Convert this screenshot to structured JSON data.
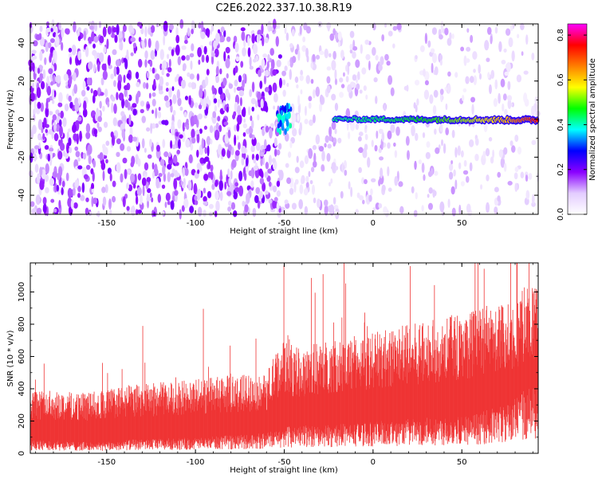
{
  "chart_data": [
    {
      "type": "heatmap",
      "title": "C2E6.2022.337.10.38.R19",
      "xlabel": "Height of straight line (km)",
      "ylabel": "Frequency (Hz)",
      "xlim": [
        -193,
        93
      ],
      "ylim": [
        -50,
        50
      ],
      "xticks": [
        -150,
        -100,
        -50,
        0,
        50
      ],
      "yticks": [
        -40,
        -20,
        0,
        20,
        40
      ],
      "colorbar": {
        "label": "Normalized spectral amplitude",
        "range": [
          0.0,
          0.85
        ],
        "ticks": [
          0.0,
          0.2,
          0.4,
          0.6,
          0.8
        ],
        "colors": [
          "#ffffff",
          "#e3ccff",
          "#8a00ff",
          "#0000ff",
          "#00ffff",
          "#00ff00",
          "#ffff00",
          "#ff7f00",
          "#ff0000",
          "#ff00ff"
        ]
      },
      "features": {
        "noise_level": 0.12,
        "signal_start_km": -52,
        "signal_end_km": 93,
        "signal_center_hz": 0,
        "signal_peak_amplitude": 0.8,
        "burst_at_km": -50
      }
    },
    {
      "type": "area",
      "xlabel": "Height of straight line (km)",
      "ylabel": "SNR (10 * v/v)",
      "xlim": [
        -193,
        93
      ],
      "ylim": [
        0,
        1180
      ],
      "xticks": [
        -150,
        -100,
        -50,
        0,
        50
      ],
      "yticks": [
        0,
        200,
        400,
        600,
        800,
        1000
      ],
      "color": "#ef3434",
      "envelope": {
        "x": [
          -193,
          -160,
          -150,
          -140,
          -100,
          -60,
          -52,
          -48,
          -45,
          -20,
          0,
          30,
          60,
          75,
          85,
          93
        ],
        "low": [
          60,
          50,
          50,
          60,
          70,
          90,
          110,
          120,
          120,
          130,
          140,
          160,
          180,
          220,
          280,
          300
        ],
        "high": [
          380,
          360,
          380,
          400,
          440,
          480,
          660,
          700,
          620,
          680,
          720,
          780,
          860,
          900,
          1000,
          980
        ]
      }
    }
  ]
}
